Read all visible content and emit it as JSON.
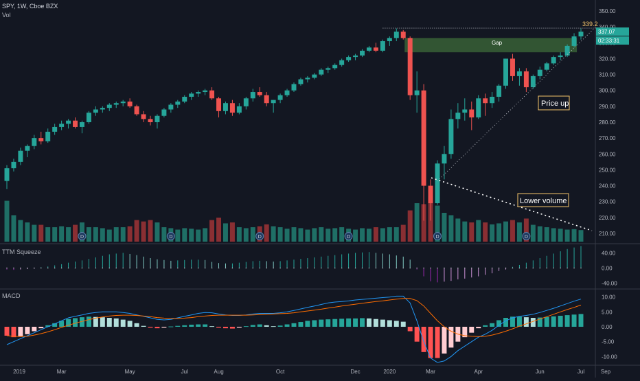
{
  "header": {
    "symbol_line": "SPY, 1W, Cboe BZX",
    "vol_label": "Vol"
  },
  "panes": {
    "squeeze_label": "TTM Squeeze",
    "macd_label": "MACD"
  },
  "colors": {
    "background": "#131722",
    "up": "#26a69a",
    "down": "#ef5350",
    "vol_up": "#1f6f66",
    "vol_down": "#8a2f33",
    "gap_zone": "#3e6b3a",
    "annotation_border": "#f5c46b",
    "annotation_text": "#ffffff",
    "macd_line": "#2196f3",
    "signal_line": "#ff6d00",
    "dividend_marker": "#1e3a5f"
  },
  "annotations": {
    "gap": "Gap",
    "price_up": "Price up",
    "lower_volume": "Lower volume",
    "target": "339.2",
    "dividend_marker": "D"
  },
  "price_axis": {
    "ticks": [
      "350.00",
      "340.00",
      "330.00",
      "320.00",
      "310.00",
      "300.00",
      "290.00",
      "280.00",
      "270.00",
      "260.00",
      "250.00",
      "240.00",
      "230.00",
      "220.00",
      "210.00"
    ],
    "current_price": "337.07",
    "countdown": "02:33:31"
  },
  "squeeze_axis": {
    "ticks": [
      "40.00",
      "0.00",
      "-40.00"
    ]
  },
  "macd_axis": {
    "ticks": [
      "10.00",
      "5.00",
      "0.00",
      "-5.00",
      "-10.00"
    ]
  },
  "time_axis": {
    "labels": [
      "2019",
      "Mar",
      "May",
      "Jul",
      "Aug",
      "Oct",
      "Dec",
      "2020",
      "Mar",
      "Apr",
      "Jun",
      "Jul",
      "Sep"
    ]
  },
  "chart_data": {
    "type": "candlestick",
    "title": "SPY, 1W, Cboe BZX",
    "ylim": [
      205,
      352
    ],
    "candles_ohlc": [
      [
        243,
        253,
        238,
        251
      ],
      [
        251,
        257,
        249,
        255
      ],
      [
        255,
        264,
        253,
        262
      ],
      [
        262,
        266,
        258,
        265
      ],
      [
        265,
        272,
        263,
        270
      ],
      [
        270,
        274,
        266,
        268
      ],
      [
        268,
        276,
        267,
        274
      ],
      [
        274,
        279,
        272,
        277
      ],
      [
        277,
        281,
        275,
        279
      ],
      [
        279,
        282,
        276,
        281
      ],
      [
        281,
        283,
        276,
        277
      ],
      [
        277,
        281,
        273,
        280
      ],
      [
        280,
        287,
        279,
        286
      ],
      [
        286,
        290,
        284,
        288
      ],
      [
        288,
        290,
        286,
        289
      ],
      [
        289,
        292,
        287,
        291
      ],
      [
        291,
        293,
        289,
        292
      ],
      [
        292,
        294,
        290,
        293
      ],
      [
        293,
        295,
        289,
        290
      ],
      [
        290,
        291,
        284,
        285
      ],
      [
        285,
        287,
        280,
        282
      ],
      [
        282,
        284,
        278,
        280
      ],
      [
        280,
        285,
        276,
        284
      ],
      [
        284,
        289,
        283,
        288
      ],
      [
        288,
        292,
        286,
        291
      ],
      [
        291,
        294,
        289,
        293
      ],
      [
        293,
        297,
        292,
        296
      ],
      [
        296,
        299,
        294,
        298
      ],
      [
        298,
        300,
        296,
        299
      ],
      [
        299,
        301,
        297,
        300
      ],
      [
        300,
        302,
        294,
        295
      ],
      [
        295,
        296,
        283,
        287
      ],
      [
        287,
        293,
        285,
        292
      ],
      [
        292,
        294,
        284,
        286
      ],
      [
        286,
        292,
        285,
        290
      ],
      [
        290,
        296,
        288,
        295
      ],
      [
        295,
        301,
        293,
        299
      ],
      [
        299,
        302,
        296,
        297
      ],
      [
        297,
        299,
        290,
        292
      ],
      [
        292,
        294,
        286,
        294
      ],
      [
        294,
        298,
        292,
        297
      ],
      [
        297,
        301,
        296,
        300
      ],
      [
        300,
        305,
        299,
        304
      ],
      [
        304,
        308,
        303,
        307
      ],
      [
        307,
        309,
        305,
        308
      ],
      [
        308,
        311,
        307,
        310
      ],
      [
        310,
        314,
        309,
        313
      ],
      [
        313,
        315,
        311,
        314
      ],
      [
        314,
        317,
        313,
        316
      ],
      [
        316,
        320,
        315,
        319
      ],
      [
        319,
        322,
        318,
        321
      ],
      [
        321,
        323,
        319,
        322
      ],
      [
        322,
        326,
        321,
        325
      ],
      [
        325,
        328,
        324,
        327
      ],
      [
        327,
        330,
        324,
        325
      ],
      [
        325,
        332,
        324,
        331
      ],
      [
        331,
        334,
        328,
        333
      ],
      [
        333,
        339,
        331,
        337
      ],
      [
        337,
        338,
        332,
        333
      ],
      [
        333,
        334,
        294,
        297
      ],
      [
        297,
        312,
        286,
        300
      ],
      [
        300,
        304,
        218,
        240
      ],
      [
        240,
        244,
        218,
        229
      ],
      [
        229,
        256,
        228,
        254
      ],
      [
        254,
        265,
        244,
        260
      ],
      [
        260,
        288,
        257,
        282
      ],
      [
        282,
        292,
        276,
        286
      ],
      [
        286,
        295,
        281,
        288
      ],
      [
        288,
        293,
        275,
        283
      ],
      [
        283,
        297,
        282,
        295
      ],
      [
        295,
        298,
        284,
        292
      ],
      [
        292,
        299,
        289,
        296
      ],
      [
        296,
        304,
        293,
        303
      ],
      [
        303,
        320,
        301,
        320
      ],
      [
        320,
        323,
        306,
        309
      ],
      [
        309,
        314,
        303,
        312
      ],
      [
        312,
        314,
        299,
        302
      ],
      [
        302,
        310,
        301,
        309
      ],
      [
        309,
        315,
        307,
        313
      ],
      [
        313,
        318,
        312,
        317
      ],
      [
        317,
        322,
        316,
        321
      ],
      [
        321,
        324,
        319,
        322
      ],
      [
        322,
        329,
        321,
        328
      ],
      [
        328,
        336,
        327,
        334
      ],
      [
        334,
        339,
        332,
        337
      ]
    ],
    "volume_relative": [
      0.85,
      0.55,
      0.45,
      0.4,
      0.35,
      0.35,
      0.3,
      0.3,
      0.32,
      0.3,
      0.35,
      0.4,
      0.3,
      0.3,
      0.28,
      0.25,
      0.3,
      0.3,
      0.32,
      0.45,
      0.42,
      0.45,
      0.4,
      0.3,
      0.28,
      0.25,
      0.28,
      0.27,
      0.25,
      0.28,
      0.45,
      0.5,
      0.38,
      0.4,
      0.3,
      0.28,
      0.3,
      0.32,
      0.36,
      0.32,
      0.3,
      0.27,
      0.3,
      0.28,
      0.25,
      0.28,
      0.3,
      0.27,
      0.28,
      0.3,
      0.27,
      0.25,
      0.28,
      0.27,
      0.3,
      0.28,
      0.3,
      0.3,
      0.35,
      0.65,
      0.8,
      0.78,
      0.95,
      0.75,
      0.6,
      0.55,
      0.48,
      0.42,
      0.4,
      0.45,
      0.4,
      0.36,
      0.38,
      0.42,
      0.45,
      0.4,
      0.48,
      0.35,
      0.32,
      0.3,
      0.28,
      0.27,
      0.25,
      0.26,
      0.24
    ],
    "squeeze_momentum": [
      -4,
      -5,
      -4,
      -3,
      -2,
      2,
      4,
      7,
      10,
      14,
      17,
      20,
      24,
      28,
      32,
      36,
      38,
      40,
      37,
      34,
      30,
      26,
      23,
      21,
      19,
      20,
      21,
      22,
      22,
      21,
      16,
      13,
      12,
      12,
      14,
      16,
      18,
      19,
      18,
      17,
      18,
      20,
      22,
      24,
      26,
      28,
      30,
      32,
      34,
      36,
      38,
      40,
      41,
      42,
      40,
      38,
      36,
      33,
      30,
      22,
      -4,
      -22,
      -35,
      -38,
      -36,
      -34,
      -30,
      -28,
      -25,
      -22,
      -18,
      -14,
      -8,
      -4,
      3,
      8,
      14,
      20,
      26,
      32,
      38,
      44,
      50,
      54,
      58
    ],
    "macd_histogram": [
      -3,
      -3.5,
      -3.2,
      -2.5,
      -1.5,
      -0.5,
      0.5,
      1.2,
      2,
      2.6,
      2.9,
      3.2,
      3.4,
      3.3,
      3.2,
      3,
      2.8,
      2.4,
      2,
      1.2,
      0.3,
      -0.3,
      -0.5,
      -0.3,
      0.1,
      0.3,
      0.5,
      0.7,
      0.8,
      0.8,
      0.2,
      -0.3,
      -0.5,
      -0.6,
      -0.3,
      0.2,
      0.6,
      0.8,
      0.5,
      0.2,
      0.4,
      0.8,
      1.2,
      1.6,
      2,
      2.2,
      2.4,
      2.5,
      2.6,
      2.7,
      2.8,
      2.8,
      2.9,
      2.8,
      2.6,
      2.4,
      2.2,
      2,
      1.7,
      -1.5,
      -5,
      -8.5,
      -10.5,
      -10.5,
      -9,
      -7,
      -5,
      -3.5,
      -2,
      -0.5,
      0.5,
      1.2,
      2.2,
      3,
      3.4,
      3.4,
      3.2,
      3,
      3.1,
      3.3,
      3.5,
      3.7,
      3.9,
      4.1,
      4.3
    ],
    "macd_line": [
      -6,
      -5,
      -4,
      -3,
      -2,
      -1,
      0,
      1,
      2,
      3,
      3.5,
      4,
      4.5,
      4.8,
      5,
      5,
      5,
      4.8,
      4.5,
      4,
      3.5,
      3,
      2.5,
      2.3,
      2.5,
      3,
      3.5,
      4,
      4.5,
      4.8,
      4.7,
      4.3,
      4,
      3.8,
      3.8,
      4,
      4.3,
      4.5,
      4.5,
      4.5,
      4.7,
      5,
      5.5,
      6,
      6.5,
      7,
      7.5,
      8,
      8.3,
      8.5,
      8.7,
      9,
      9.2,
      9.4,
      9.6,
      9.8,
      10,
      10.3,
      10.3,
      8,
      2,
      -5,
      -10.5,
      -12,
      -11.5,
      -10,
      -8,
      -6.5,
      -5,
      -3.5,
      -2.5,
      -1.2,
      0.5,
      2,
      3,
      3.5,
      3.8,
      4.2,
      4.8,
      5.5,
      6.2,
      7,
      7.8,
      8.6,
      9.3
    ],
    "signal_line": [
      -3,
      -3.2,
      -3.3,
      -3.2,
      -2.8,
      -2.3,
      -1.7,
      -1,
      -0.2,
      0.5,
      1.2,
      1.8,
      2.4,
      2.9,
      3.3,
      3.6,
      3.8,
      3.9,
      3.9,
      3.8,
      3.6,
      3.4,
      3.1,
      2.9,
      2.8,
      2.8,
      2.9,
      3.1,
      3.4,
      3.6,
      3.8,
      3.9,
      3.9,
      3.9,
      3.9,
      3.9,
      4,
      4.1,
      4.2,
      4.3,
      4.4,
      4.5,
      4.7,
      5,
      5.3,
      5.6,
      5.9,
      6.3,
      6.6,
      7,
      7.3,
      7.6,
      7.9,
      8.2,
      8.5,
      8.7,
      9,
      9.3,
      9.5,
      9.5,
      8.8,
      7,
      4.5,
      2,
      0,
      -1.5,
      -2.5,
      -3,
      -3.2,
      -3.3,
      -3.2,
      -2.8,
      -2.2,
      -1.5,
      -0.7,
      0.2,
      1,
      1.8,
      2.6,
      3.4,
      4.2,
      5,
      5.8,
      6.5,
      7.3
    ],
    "squeeze_ylim": [
      -50,
      55
    ],
    "macd_ylim": [
      -12,
      12
    ]
  }
}
